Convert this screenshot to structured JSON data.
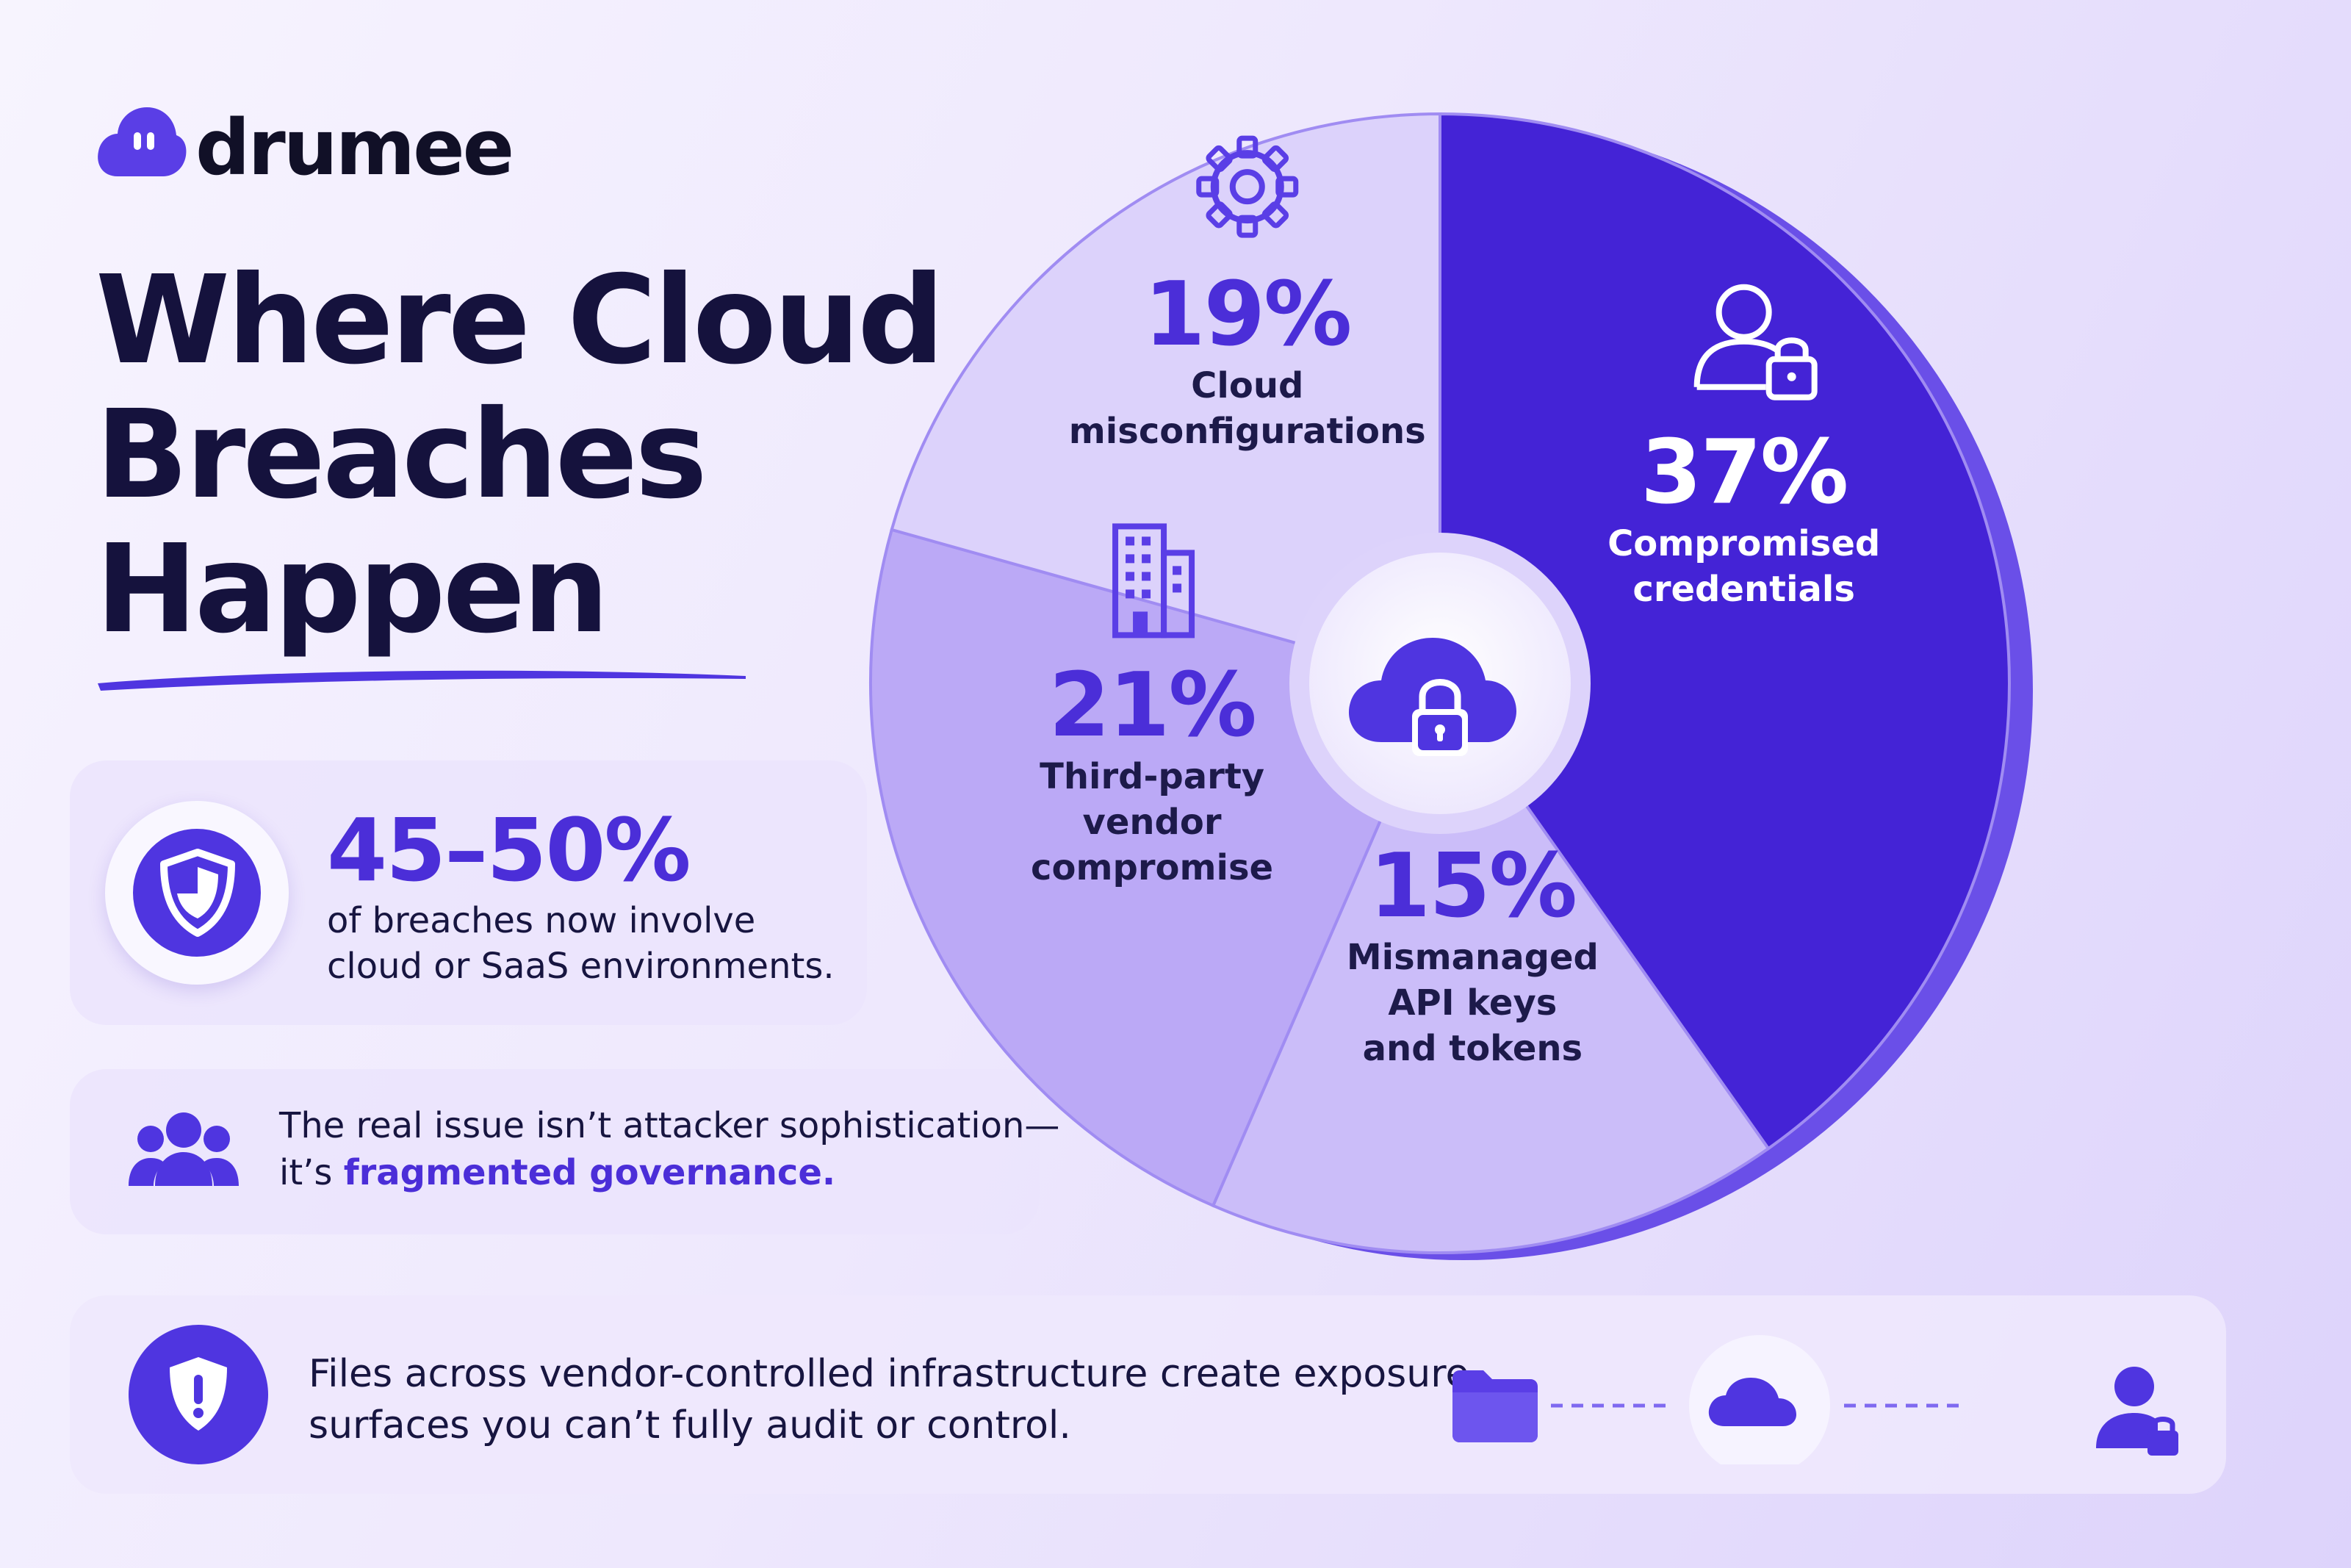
{
  "brand": {
    "name": "drumee"
  },
  "headline": {
    "lines": [
      "Where Cloud",
      "Breaches",
      "Happen"
    ]
  },
  "stat_card": {
    "value": "45–50%",
    "lines": [
      "of breaches now involve",
      "cloud or SaaS environments."
    ]
  },
  "issue_card": {
    "line1": "The real issue isn’t attacker sophistication—",
    "line2_prefix": "it’s ",
    "line2_highlight": "fragmented governance."
  },
  "exposure_card": {
    "lines": [
      "Files across vendor-controlled infrastructure create exposure",
      "surfaces you can’t fully audit or control."
    ]
  },
  "colors": {
    "accent": "#4f35e0",
    "dark_slice": "#4423d6",
    "text": "#15123d"
  },
  "icons": {
    "logo": "cloud-logo-icon",
    "stat": "shield-icon",
    "issue": "users-group-icon",
    "exposure": "shield-alert-icon",
    "center": "cloud-lock-icon",
    "flow": [
      "folder-icon",
      "cloud-icon",
      "user-lock-icon"
    ],
    "slices": [
      "user-lock-icon",
      "key-icon",
      "building-icon",
      "gear-icon"
    ]
  },
  "chart_data": {
    "type": "pie",
    "slices": [
      {
        "value": 37,
        "label": "37%",
        "caption": [
          "Compromised",
          "credentials"
        ],
        "color": "#4423d6",
        "text_color": "light"
      },
      {
        "value": 15,
        "label": "15%",
        "caption": [
          "Mismanaged",
          "API keys",
          "and tokens"
        ],
        "color": "#cbbdf9",
        "text_color": "dark"
      },
      {
        "value": 21,
        "label": "21%",
        "caption": [
          "Third-party",
          "vendor",
          "compromise"
        ],
        "color": "#bba9f6",
        "text_color": "dark"
      },
      {
        "value": 19,
        "label": "19%",
        "caption": [
          "Cloud",
          "misconfigurations"
        ],
        "color": "#dcd2fb",
        "text_color": "dark"
      }
    ]
  }
}
